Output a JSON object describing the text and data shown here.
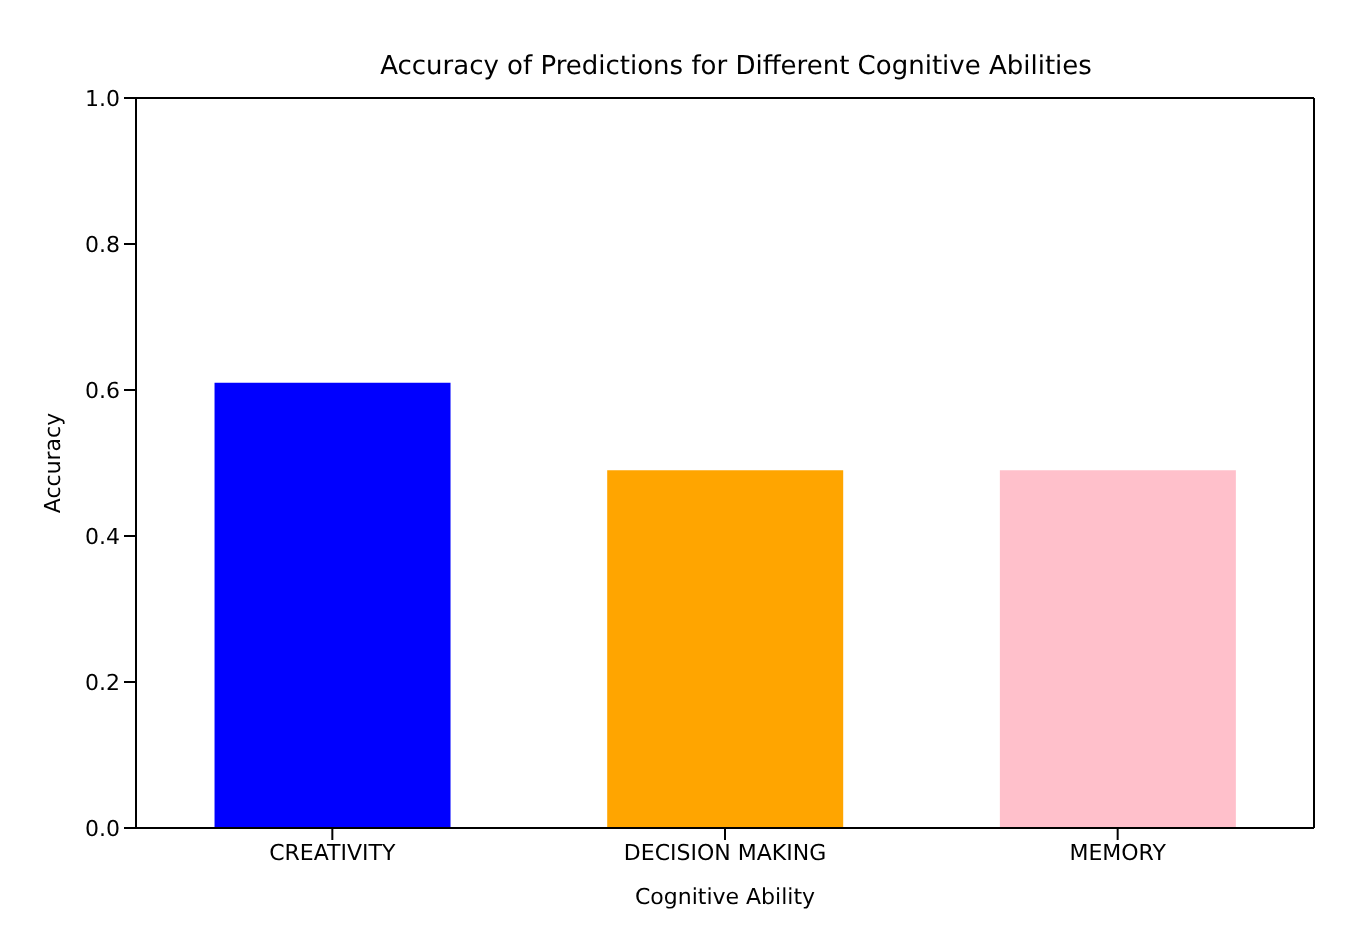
{
  "chart_data": {
    "type": "bar",
    "title": "Accuracy of Predictions for Different Cognitive Abilities",
    "xlabel": "Cognitive Ability",
    "ylabel": "Accuracy",
    "categories": [
      "CREATIVITY",
      "DECISION MAKING",
      "MEMORY"
    ],
    "values": [
      0.61,
      0.49,
      0.49
    ],
    "colors": [
      "#0000ff",
      "#ffa500",
      "#ffc0cb"
    ],
    "ylim": [
      0,
      1
    ],
    "yticks": [
      {
        "value": 0,
        "label": "0.0"
      },
      0.2,
      0.4,
      0.6,
      0.8,
      {
        "value": 1,
        "label": "1.0"
      }
    ],
    "grid": false
  }
}
